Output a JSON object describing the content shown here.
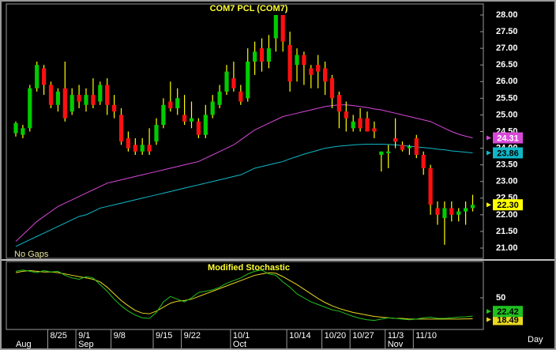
{
  "chart_data": [
    {
      "type": "candlestick",
      "title": "COM7  PCL  (COM7)",
      "note": "No Gaps",
      "categories": [
        null,
        null,
        null,
        null,
        null,
        "8/25",
        null,
        null,
        null,
        "9/1",
        null,
        null,
        null,
        null,
        "9/8",
        null,
        null,
        null,
        null,
        null,
        "9/15",
        null,
        null,
        null,
        "9/22",
        null,
        null,
        null,
        null,
        null,
        null,
        "10/1",
        null,
        null,
        null,
        null,
        null,
        null,
        null,
        "10/14",
        null,
        null,
        null,
        null,
        "10/20",
        null,
        null,
        null,
        "10/27",
        null,
        null,
        null,
        null,
        "11/3",
        null,
        null,
        null,
        "11/10",
        null,
        null,
        null,
        null,
        null,
        null,
        null,
        null
      ],
      "month_labels": [
        "Aug",
        null,
        null,
        null,
        null,
        null,
        null,
        null,
        null,
        "Sep",
        null,
        null,
        null,
        null,
        null,
        null,
        null,
        null,
        null,
        null,
        null,
        null,
        null,
        null,
        null,
        null,
        null,
        null,
        null,
        null,
        null,
        "Oct",
        null,
        null,
        null,
        null,
        null,
        null,
        null,
        null,
        null,
        null,
        null,
        null,
        null,
        null,
        null,
        null,
        null,
        null,
        null,
        null,
        null,
        "Nov",
        null,
        null,
        null,
        null,
        null,
        null,
        null,
        null,
        null,
        null,
        null,
        null
      ],
      "open": [
        24.45,
        24.4,
        24.6,
        25.8,
        26.4,
        25.9,
        25.3,
        25.8,
        25.1,
        25.6,
        25.3,
        25.6,
        25.4,
        25.9,
        25.3,
        25.0,
        24.3,
        24.1,
        23.9,
        24.1,
        24.2,
        24.7,
        25.4,
        25.2,
        25.0,
        24.8,
        24.8,
        24.4,
        25.0,
        25.3,
        25.7,
        26.1,
        25.7,
        25.5,
        26.6,
        27.0,
        26.6,
        27.3,
        28.0,
        27.1,
        26.5,
        26.8,
        26.4,
        26.5,
        26.4,
        26.1,
        25.6,
        25.1,
        24.6,
        24.9,
        24.9,
        24.6,
        23.8,
        23.85,
        24.3,
        24.1,
        24.0,
        24.3,
        23.8,
        23.4,
        22.2,
        21.9,
        22.2,
        22.0,
        22.1,
        22.2
      ],
      "high": [
        24.8,
        24.7,
        25.9,
        26.6,
        26.5,
        26.0,
        25.8,
        26.6,
        25.8,
        25.9,
        25.8,
        26.1,
        26.0,
        26.1,
        25.6,
        25.2,
        24.5,
        24.3,
        24.3,
        24.6,
        24.9,
        25.5,
        26.0,
        25.8,
        25.6,
        25.4,
        24.9,
        25.3,
        25.6,
        25.9,
        26.5,
        26.6,
        25.9,
        27.0,
        27.2,
        27.3,
        27.4,
        28.0,
        28.0,
        27.5,
        27.0,
        26.9,
        26.5,
        26.8,
        26.6,
        26.2,
        25.7,
        25.4,
        25.0,
        25.2,
        25.1,
        24.8,
        23.9,
        24.1,
        24.9,
        24.2,
        24.1,
        24.4,
        23.9,
        23.5,
        22.4,
        22.4,
        22.4,
        22.2,
        22.4,
        22.6
      ],
      "low": [
        24.35,
        24.3,
        24.5,
        25.7,
        25.6,
        25.2,
        25.1,
        24.8,
        25.0,
        25.2,
        25.1,
        25.2,
        25.3,
        25.0,
        24.9,
        24.1,
        23.9,
        23.8,
        23.8,
        23.8,
        24.1,
        24.6,
        25.1,
        25.0,
        24.7,
        24.6,
        24.3,
        24.3,
        24.9,
        25.2,
        25.6,
        25.7,
        25.3,
        25.4,
        26.2,
        26.3,
        26.4,
        26.9,
        26.9,
        25.7,
        26.0,
        25.9,
        25.8,
        25.8,
        25.6,
        25.2,
        24.6,
        24.5,
        24.5,
        24.5,
        24.5,
        24.3,
        23.3,
        23.4,
        24.0,
        23.9,
        23.8,
        23.7,
        23.2,
        22.0,
        21.7,
        21.1,
        21.8,
        21.8,
        21.7,
        22.1
      ],
      "close": [
        24.75,
        24.6,
        25.8,
        26.5,
        25.9,
        25.3,
        25.7,
        24.9,
        25.6,
        25.4,
        25.6,
        25.3,
        25.9,
        25.3,
        25.1,
        24.2,
        24.0,
        23.9,
        24.1,
        23.9,
        24.7,
        25.3,
        25.2,
        25.5,
        24.8,
        24.9,
        24.4,
        25.0,
        25.4,
        25.7,
        26.3,
        25.8,
        25.4,
        26.6,
        26.9,
        26.6,
        27.0,
        28.0,
        27.2,
        26.0,
        26.8,
        26.5,
        26.2,
        26.3,
        26.0,
        25.5,
        25.1,
        24.9,
        24.8,
        24.6,
        24.5,
        24.5,
        23.9,
        23.9,
        24.2,
        23.95,
        24.05,
        23.8,
        23.4,
        22.3,
        22.0,
        22.2,
        22.0,
        22.1,
        22.2,
        22.3
      ],
      "last_close_label": "22.30",
      "up_color": "#00cc00",
      "down_color": "#ff1010",
      "wick_color": "#ffff00",
      "series": [
        {
          "color": "#d848d8",
          "values": [
            21.2,
            21.4,
            21.6,
            21.8,
            21.95,
            22.1,
            22.25,
            22.35,
            22.45,
            22.55,
            22.65,
            22.75,
            22.85,
            22.95,
            23.0,
            23.05,
            23.1,
            23.15,
            23.2,
            23.25,
            23.3,
            23.35,
            23.4,
            23.45,
            23.5,
            23.55,
            23.6,
            23.7,
            23.8,
            23.9,
            24.0,
            24.1,
            24.25,
            24.4,
            24.55,
            24.65,
            24.75,
            24.85,
            24.95,
            25.0,
            25.05,
            25.1,
            25.15,
            25.2,
            25.25,
            25.28,
            25.3,
            25.3,
            25.28,
            25.25,
            25.22,
            25.18,
            25.15,
            25.1,
            25.05,
            25.0,
            24.95,
            24.9,
            24.85,
            24.8,
            24.7,
            24.6,
            24.5,
            24.42,
            24.36,
            24.31
          ]
        },
        {
          "color": "#10b8c8",
          "values": [
            21.05,
            21.15,
            21.25,
            21.35,
            21.45,
            21.55,
            21.65,
            21.75,
            21.85,
            21.95,
            22.0,
            22.1,
            22.2,
            22.25,
            22.3,
            22.35,
            22.4,
            22.45,
            22.5,
            22.55,
            22.6,
            22.65,
            22.7,
            22.75,
            22.8,
            22.85,
            22.9,
            22.95,
            23.0,
            23.05,
            23.1,
            23.15,
            23.2,
            23.3,
            23.4,
            23.45,
            23.5,
            23.55,
            23.6,
            23.68,
            23.75,
            23.82,
            23.88,
            23.94,
            24.0,
            24.03,
            24.06,
            24.08,
            24.1,
            24.11,
            24.12,
            24.12,
            24.12,
            24.11,
            24.1,
            24.08,
            24.06,
            24.04,
            24.02,
            24.0,
            23.97,
            23.95,
            23.92,
            23.9,
            23.88,
            23.86
          ]
        }
      ],
      "ylim": [
        20.8,
        28.3
      ],
      "yticks": [
        {
          "value": 21,
          "label": "21.00"
        },
        {
          "value": 21.5,
          "label": "21.50"
        },
        {
          "value": 22,
          "label": "22.00"
        },
        {
          "value": 22.5,
          "label": "22.50"
        },
        {
          "value": 23,
          "label": "23.00"
        },
        {
          "value": 23.5,
          "label": "23.50"
        },
        {
          "value": 24,
          "label": "24.00"
        },
        {
          "value": 24.5,
          "label": "24.50"
        },
        {
          "value": 25,
          "label": "25.00"
        },
        {
          "value": 25.5,
          "label": "25.50"
        },
        {
          "value": 26,
          "label": "26.00"
        },
        {
          "value": 26.5,
          "label": "26.50"
        },
        {
          "value": 27,
          "label": "27.00"
        },
        {
          "value": 27.5,
          "label": "27.50"
        },
        {
          "value": 28,
          "label": "28.00"
        }
      ]
    },
    {
      "type": "line",
      "title": "Modified  Stochastic",
      "x_label": "Day",
      "series": [
        {
          "color": "#e8d820",
          "values": [
            88,
            90,
            91,
            90,
            89,
            89,
            88,
            86,
            84,
            82,
            80,
            78,
            74,
            66,
            56,
            46,
            38,
            31,
            27,
            26,
            30,
            36,
            42,
            45,
            46,
            48,
            52,
            56,
            60,
            64,
            68,
            72,
            76,
            80,
            84,
            86,
            88,
            87,
            82,
            76,
            70,
            63,
            56,
            49,
            43,
            38,
            34,
            31,
            28,
            26,
            24,
            22,
            21,
            20,
            19,
            19,
            18,
            18,
            18,
            18,
            18,
            18,
            18,
            18,
            18.3,
            18.49
          ]
        },
        {
          "color": "#20c020",
          "values": [
            90,
            92,
            90,
            88,
            91,
            89,
            90,
            84,
            80,
            78,
            82,
            80,
            70,
            60,
            48,
            38,
            30,
            24,
            20,
            19,
            28,
            44,
            52,
            48,
            44,
            50,
            58,
            60,
            62,
            66,
            72,
            76,
            80,
            86,
            90,
            92,
            86,
            84,
            74,
            66,
            56,
            50,
            44,
            40,
            36,
            32,
            30,
            26,
            22,
            19,
            17,
            16,
            18,
            20,
            19,
            18,
            17,
            18,
            20,
            21,
            19,
            19,
            20,
            21,
            21.5,
            22.42
          ]
        }
      ],
      "ylim": [
        0,
        100
      ],
      "yticks": [
        50
      ]
    }
  ]
}
